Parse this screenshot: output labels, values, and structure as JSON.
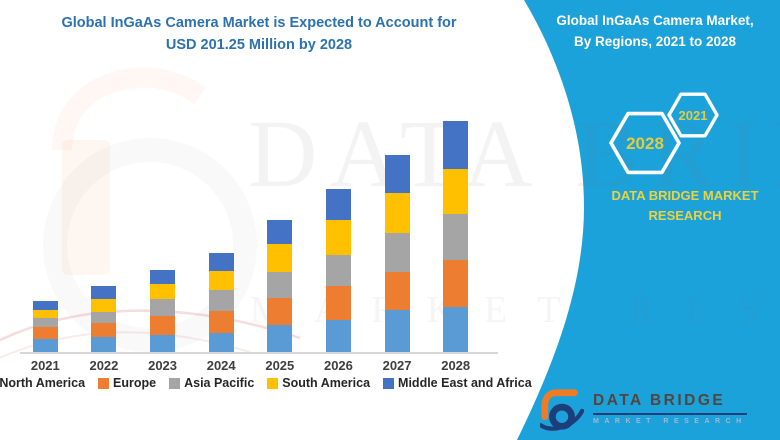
{
  "header": {
    "left_title_line1": "Global InGaAs Camera Market is Expected to Account for",
    "left_title_line2": "USD 201.25 Million by 2028",
    "right_title_line1": "Global InGaAs Camera Market,",
    "right_title_line2": "By Regions, 2021 to 2028"
  },
  "badges": {
    "hex_large_year": "2028",
    "hex_small_year": "2021"
  },
  "brand": {
    "panel_line1": "DATA BRIDGE MARKET",
    "panel_line2": "RESEARCH",
    "logo_name": "DATA BRIDGE",
    "logo_subtitle": "MARKET RESEARCH"
  },
  "watermark": {
    "line1": "DATA BRIDGE",
    "line2": "MARKET RESEARCH"
  },
  "colors": {
    "teal_panel": "#1CA2DB",
    "title_blue": "#2C71B0",
    "badge_year_yellow": "#E6CB3C",
    "brand_yellow": "#EDD23B",
    "axis_line": "#D8D8D8",
    "tick_text": "#3F3F3F",
    "legend_text": "#262626",
    "logo_orange": "#F07B24",
    "logo_navy": "#1E3D7B",
    "logo_name_brown": "#54453E",
    "logo_subtitle_gray": "#A8B4CD"
  },
  "chart_data": {
    "type": "bar",
    "stacked": true,
    "title": "Global InGaAs Camera Market is Expected to Account for USD 201.25 Million by 2028",
    "unit": "USD Million",
    "categories": [
      "2021",
      "2022",
      "2023",
      "2024",
      "2025",
      "2026",
      "2027",
      "2028"
    ],
    "series": [
      {
        "name": "North America",
        "color": "#5B9BD5",
        "values": [
          11.5,
          13.1,
          14.6,
          16.6,
          23.3,
          27.7,
          37.0,
          39.4
        ]
      },
      {
        "name": "Europe",
        "color": "#ED7D31",
        "values": [
          10.2,
          12.5,
          16.6,
          19.3,
          24.2,
          29.8,
          33.0,
          40.8
        ]
      },
      {
        "name": "Asia Pacific",
        "color": "#A5A5A5",
        "values": [
          7.9,
          9.3,
          15.2,
          18.7,
          22.5,
          27.1,
          33.5,
          40.3
        ]
      },
      {
        "name": "South America",
        "color": "#FFC000",
        "values": [
          7.3,
          11.7,
          13.4,
          16.3,
          23.9,
          30.6,
          35.0,
          39.1
        ]
      },
      {
        "name": "Middle East and Africa",
        "color": "#4472C4",
        "values": [
          7.9,
          11.1,
          11.7,
          15.8,
          21.3,
          26.8,
          33.5,
          41.7
        ]
      }
    ],
    "totals_estimated": [
      44.8,
      57.7,
      71.5,
      86.7,
      115.2,
      142.0,
      172.0,
      201.25
    ],
    "highlight_total_2028": 201.25,
    "ylim": [
      0,
      220
    ],
    "grid": false,
    "y_axis_visible": false,
    "legend_position": "bottom"
  }
}
